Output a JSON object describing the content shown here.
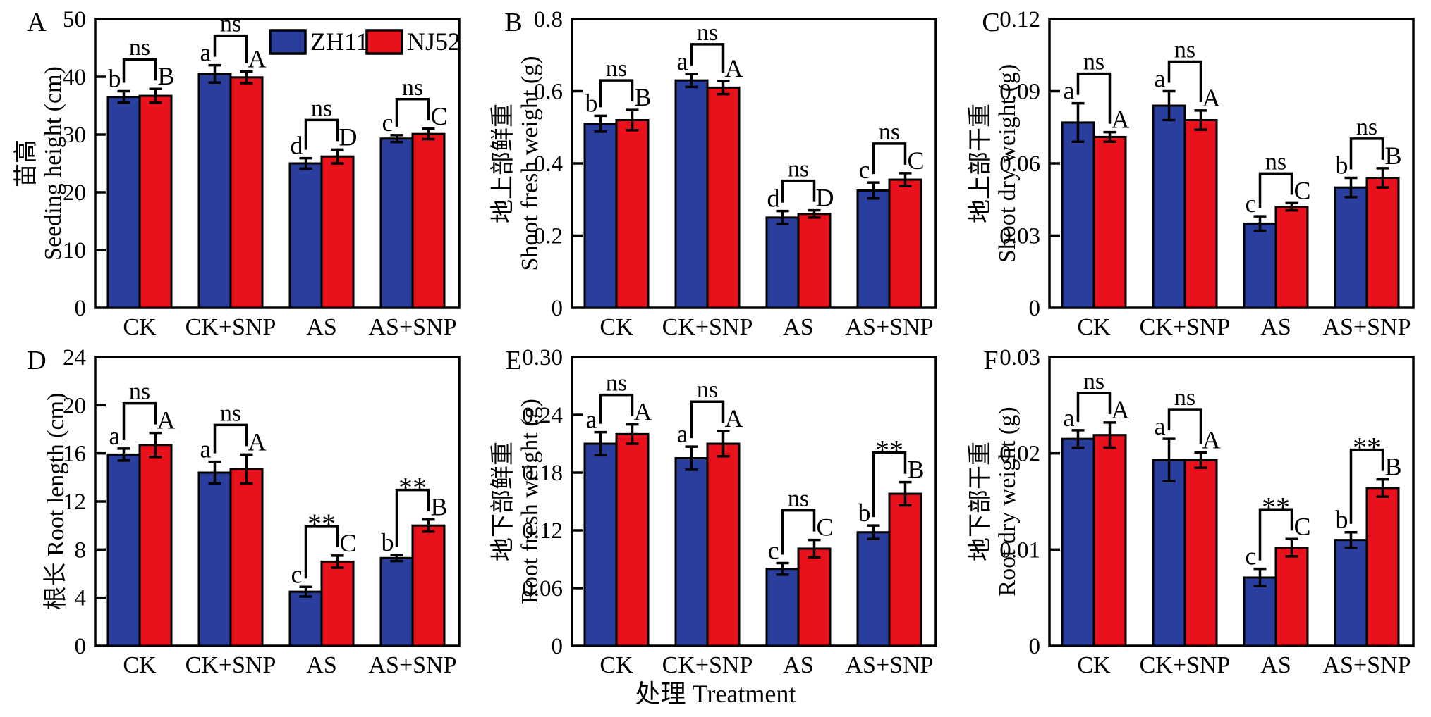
{
  "figure_colors": {
    "zh11_blue": "#2a3f9d",
    "nj52_red": "#e8111c",
    "axis_black": "#000000",
    "background": "#ffffff"
  },
  "legend": {
    "items": [
      {
        "label": "ZH11",
        "color": "#2a3f9d"
      },
      {
        "label": "NJ52",
        "color": "#e8111c"
      }
    ]
  },
  "x_axis_title": "处理 Treatment",
  "chart_data": [
    {
      "type": "bar",
      "panel_letter": "A",
      "title_lines": [
        "苗高",
        "Seeding height (cm)"
      ],
      "categories": [
        "CK",
        "CK+SNP",
        "AS",
        "AS+SNP"
      ],
      "ymax": 50,
      "ytick_values": [
        0,
        10,
        20,
        30,
        40,
        50
      ],
      "ytick_labels": [
        "0",
        "10",
        "20",
        "30",
        "40",
        "50"
      ],
      "series": [
        {
          "name": "ZH11",
          "values": [
            36.5,
            40.5,
            25.0,
            29.3
          ],
          "errors": [
            1.0,
            1.5,
            0.9,
            0.6
          ],
          "letters": [
            "b",
            "a",
            "d",
            "c"
          ]
        },
        {
          "name": "NJ52",
          "values": [
            36.7,
            39.9,
            26.2,
            30.1
          ],
          "errors": [
            1.2,
            1.0,
            1.2,
            0.9
          ],
          "letters": [
            "B",
            "A",
            "D",
            "C"
          ]
        }
      ],
      "significance": [
        "ns",
        "ns",
        "ns",
        "ns"
      ],
      "has_legend": true
    },
    {
      "type": "bar",
      "panel_letter": "B",
      "title_lines": [
        "地上部鲜重",
        "Shoot fresh weight (g)"
      ],
      "categories": [
        "CK",
        "CK+SNP",
        "AS",
        "AS+SNP"
      ],
      "ymax": 0.8,
      "ytick_values": [
        0,
        0.2,
        0.4,
        0.6,
        0.8
      ],
      "ytick_labels": [
        "0",
        "0.2",
        "0.4",
        "0.6",
        "0.8"
      ],
      "series": [
        {
          "name": "ZH11",
          "values": [
            0.51,
            0.63,
            0.25,
            0.325
          ],
          "errors": [
            0.022,
            0.018,
            0.018,
            0.022
          ],
          "letters": [
            "b",
            "a",
            "d",
            "c"
          ]
        },
        {
          "name": "NJ52",
          "values": [
            0.52,
            0.61,
            0.26,
            0.355
          ],
          "errors": [
            0.028,
            0.018,
            0.01,
            0.018
          ],
          "letters": [
            "B",
            "A",
            "D",
            "C"
          ]
        }
      ],
      "significance": [
        "ns",
        "ns",
        "ns",
        "ns"
      ],
      "has_legend": false
    },
    {
      "type": "bar",
      "panel_letter": "C",
      "title_lines": [
        "地上部干重",
        "Shoot dry weight (g)"
      ],
      "categories": [
        "CK",
        "CK+SNP",
        "AS",
        "AS+SNP"
      ],
      "ymax": 0.12,
      "ytick_values": [
        0,
        0.03,
        0.06,
        0.09,
        0.12
      ],
      "ytick_labels": [
        "0",
        "0.03",
        "0.06",
        "0.09",
        "0.12"
      ],
      "series": [
        {
          "name": "ZH11",
          "values": [
            0.077,
            0.084,
            0.035,
            0.05
          ],
          "errors": [
            0.008,
            0.006,
            0.003,
            0.004
          ],
          "letters": [
            "a",
            "a",
            "c",
            "b"
          ]
        },
        {
          "name": "NJ52",
          "values": [
            0.071,
            0.078,
            0.042,
            0.054
          ],
          "errors": [
            0.002,
            0.004,
            0.0015,
            0.004
          ],
          "letters": [
            "A",
            "A",
            "C",
            "B"
          ]
        }
      ],
      "significance": [
        "ns",
        "ns",
        "ns",
        "ns"
      ],
      "has_legend": false
    },
    {
      "type": "bar",
      "panel_letter": "D",
      "title_lines": [
        "根长 Root length (cm)"
      ],
      "categories": [
        "CK",
        "CK+SNP",
        "AS",
        "AS+SNP"
      ],
      "ymax": 24,
      "ytick_values": [
        0,
        4,
        8,
        12,
        16,
        20,
        24
      ],
      "ytick_labels": [
        "0",
        "4",
        "8",
        "12",
        "16",
        "20",
        "24"
      ],
      "series": [
        {
          "name": "ZH11",
          "values": [
            15.9,
            14.4,
            4.5,
            7.3
          ],
          "errors": [
            0.5,
            0.9,
            0.4,
            0.25
          ],
          "letters": [
            "a",
            "a",
            "c",
            "b"
          ]
        },
        {
          "name": "NJ52",
          "values": [
            16.7,
            14.7,
            7.0,
            10.0
          ],
          "errors": [
            1.0,
            1.2,
            0.5,
            0.5
          ],
          "letters": [
            "A",
            "A",
            "C",
            "B"
          ]
        }
      ],
      "significance": [
        "ns",
        "ns",
        "**",
        "**"
      ],
      "has_legend": false
    },
    {
      "type": "bar",
      "panel_letter": "E",
      "title_lines": [
        "地下部鲜重",
        "Root fresh weight (g)"
      ],
      "categories": [
        "CK",
        "CK+SNP",
        "AS",
        "AS+SNP"
      ],
      "ymax": 0.3,
      "ytick_values": [
        0,
        0.06,
        0.12,
        0.18,
        0.24,
        0.3
      ],
      "ytick_labels": [
        "0",
        "0.06",
        "0.12",
        "0.18",
        "0.24",
        "0.30"
      ],
      "series": [
        {
          "name": "ZH11",
          "values": [
            0.21,
            0.195,
            0.08,
            0.118
          ],
          "errors": [
            0.012,
            0.012,
            0.006,
            0.007
          ],
          "letters": [
            "a",
            "a",
            "c",
            "b"
          ]
        },
        {
          "name": "NJ52",
          "values": [
            0.22,
            0.21,
            0.101,
            0.158
          ],
          "errors": [
            0.01,
            0.013,
            0.009,
            0.012
          ],
          "letters": [
            "A",
            "A",
            "C",
            "B"
          ]
        }
      ],
      "significance": [
        "ns",
        "ns",
        "ns",
        "**"
      ],
      "has_legend": false
    },
    {
      "type": "bar",
      "panel_letter": "F",
      "title_lines": [
        "地下部干重",
        "Root dry weight (g)"
      ],
      "categories": [
        "CK",
        "CK+SNP",
        "AS",
        "AS+SNP"
      ],
      "ymax": 0.03,
      "ytick_values": [
        0,
        0.01,
        0.02,
        0.03
      ],
      "ytick_labels": [
        "0",
        "0.01",
        "0.02",
        "0.03"
      ],
      "series": [
        {
          "name": "ZH11",
          "values": [
            0.0215,
            0.0193,
            0.0071,
            0.011
          ],
          "errors": [
            0.0009,
            0.0022,
            0.0009,
            0.0008
          ],
          "letters": [
            "a",
            "a",
            "c",
            "b"
          ]
        },
        {
          "name": "NJ52",
          "values": [
            0.0219,
            0.0193,
            0.0102,
            0.0164
          ],
          "errors": [
            0.0013,
            0.0008,
            0.0009,
            0.0009
          ],
          "letters": [
            "A",
            "A",
            "C",
            "B"
          ]
        }
      ],
      "significance": [
        "ns",
        "ns",
        "**",
        "**"
      ],
      "has_legend": false
    }
  ]
}
